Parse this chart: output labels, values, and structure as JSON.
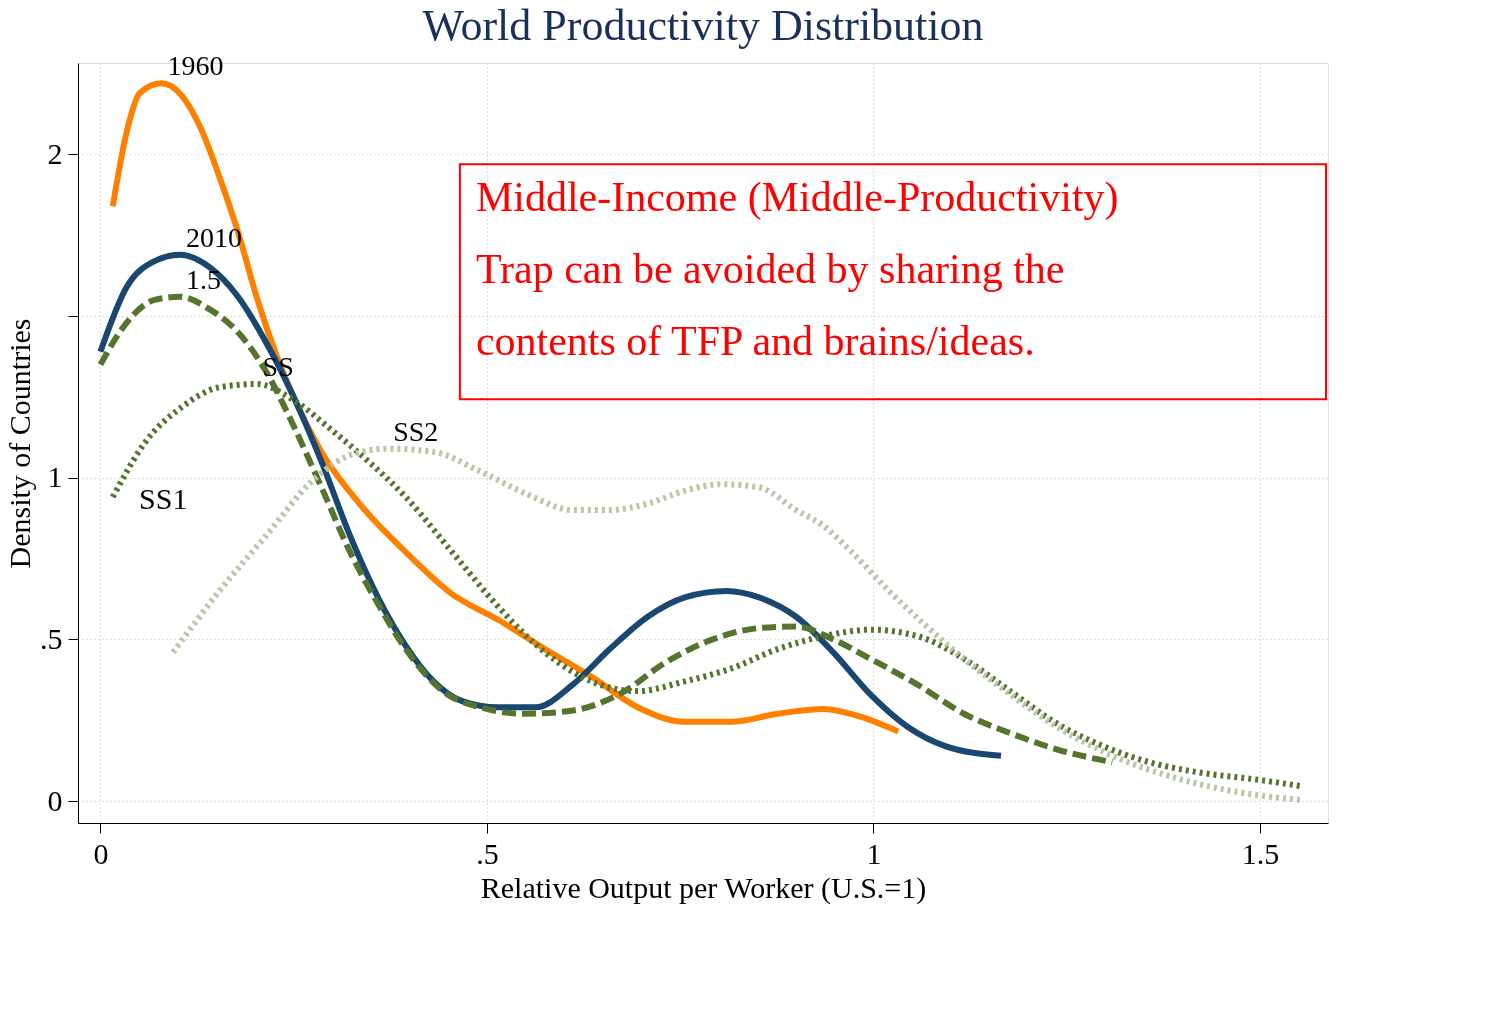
{
  "chart_data": {
    "type": "line",
    "title": "World Productivity Distribution",
    "xlabel": "Relative Output per Worker (U.S.=1)",
    "ylabel": "Density of Countries",
    "xlim": [
      -0.029,
      1.588
    ],
    "ylim": [
      -0.068,
      2.283
    ],
    "xticks": [
      0,
      {
        "value": 0.5,
        "label": ".5"
      },
      1,
      1.5
    ],
    "yticks": [
      0,
      {
        "value": 0.5,
        "label": ".5"
      },
      1,
      {
        "value": 1.5,
        "label": null
      },
      2
    ],
    "grid": true,
    "legend": false,
    "marker": "none",
    "series": [
      {
        "name": "1960",
        "color": "#ff7f00",
        "line_style": "solid",
        "x": [
          0.016,
          0.034,
          0.051,
          0.079,
          0.106,
          0.13,
          0.154,
          0.178,
          0.202,
          0.226,
          0.25,
          0.286,
          0.335,
          0.395,
          0.455,
          0.515,
          0.575,
          0.635,
          0.695,
          0.756,
          0.816,
          0.876,
          0.936,
          0.984,
          1.032
        ],
        "values": [
          1.84,
          2.07,
          2.19,
          2.22,
          2.18,
          2.08,
          1.93,
          1.76,
          1.56,
          1.39,
          1.25,
          1.08,
          0.92,
          0.77,
          0.64,
          0.56,
          0.47,
          0.385,
          0.29,
          0.245,
          0.245,
          0.27,
          0.285,
          0.26,
          0.215
        ]
      },
      {
        "name": "2010",
        "color": "#1a476f",
        "line_style": "solid",
        "x": [
          0,
          0.034,
          0.07,
          0.103,
          0.142,
          0.178,
          0.214,
          0.25,
          0.286,
          0.323,
          0.359,
          0.395,
          0.431,
          0.467,
          0.515,
          0.563,
          0.611,
          0.659,
          0.708,
          0.756,
          0.81,
          0.852,
          0.9,
          0.948,
          0.996,
          1.044,
          1.093,
          1.165
        ],
        "values": [
          1.39,
          1.59,
          1.67,
          1.69,
          1.65,
          1.56,
          1.42,
          1.25,
          1.05,
          0.82,
          0.63,
          0.48,
          0.37,
          0.31,
          0.29,
          0.29,
          0.36,
          0.47,
          0.57,
          0.63,
          0.65,
          0.63,
          0.57,
          0.46,
          0.33,
          0.23,
          0.17,
          0.14
        ]
      },
      {
        "name": "1.5",
        "color": "#55752f",
        "line_style": "dashed",
        "x": [
          0,
          0.034,
          0.07,
          0.103,
          0.142,
          0.178,
          0.214,
          0.25,
          0.286,
          0.323,
          0.359,
          0.395,
          0.443,
          0.491,
          0.551,
          0.611,
          0.671,
          0.732,
          0.792,
          0.852,
          0.9,
          0.948,
          0.996,
          1.057,
          1.117,
          1.177,
          1.237,
          1.309
        ],
        "values": [
          1.35,
          1.48,
          1.55,
          1.56,
          1.52,
          1.45,
          1.33,
          1.16,
          0.97,
          0.77,
          0.61,
          0.47,
          0.34,
          0.29,
          0.27,
          0.28,
          0.33,
          0.43,
          0.5,
          0.535,
          0.54,
          0.5,
          0.44,
          0.36,
          0.27,
          0.21,
          0.16,
          0.12
        ]
      },
      {
        "name": "SS",
        "color": "#55752f",
        "line_style": "dotted",
        "x": [
          0.016,
          0.058,
          0.106,
          0.154,
          0.202,
          0.25,
          0.298,
          0.347,
          0.395,
          0.455,
          0.515,
          0.575,
          0.635,
          0.695,
          0.756,
          0.816,
          0.876,
          0.936,
          0.996,
          1.057,
          1.117,
          1.177,
          1.237,
          1.297,
          1.357,
          1.417,
          1.5,
          1.556
        ],
        "values": [
          0.94,
          1.11,
          1.22,
          1.28,
          1.29,
          1.24,
          1.15,
          1.05,
          0.94,
          0.77,
          0.6,
          0.46,
          0.37,
          0.34,
          0.37,
          0.41,
          0.47,
          0.51,
          0.53,
          0.51,
          0.44,
          0.34,
          0.24,
          0.17,
          0.12,
          0.09,
          0.065,
          0.045
        ]
      },
      {
        "name": "SS2",
        "color": "#b9c6a8",
        "line_style": "dotted",
        "x": [
          0.094,
          0.154,
          0.214,
          0.274,
          0.323,
          0.371,
          0.431,
          0.491,
          0.551,
          0.611,
          0.659,
          0.708,
          0.756,
          0.804,
          0.852,
          0.9,
          0.936,
          0.972,
          1.02,
          1.069,
          1.117,
          1.177,
          1.237,
          1.309,
          1.393,
          1.5,
          1.556
        ],
        "values": [
          0.46,
          0.65,
          0.82,
          0.99,
          1.07,
          1.09,
          1.08,
          1.02,
          0.95,
          0.9,
          0.9,
          0.92,
          0.96,
          0.98,
          0.97,
          0.9,
          0.85,
          0.77,
          0.65,
          0.54,
          0.44,
          0.33,
          0.23,
          0.14,
          0.07,
          0.017,
          0.003
        ]
      }
    ],
    "annotations": [
      "Middle-Income (Middle-Productivity)\nTrap can be avoided by sharing the\ncontents of TFP and brains/ideas.",
      "SS1"
    ]
  }
}
